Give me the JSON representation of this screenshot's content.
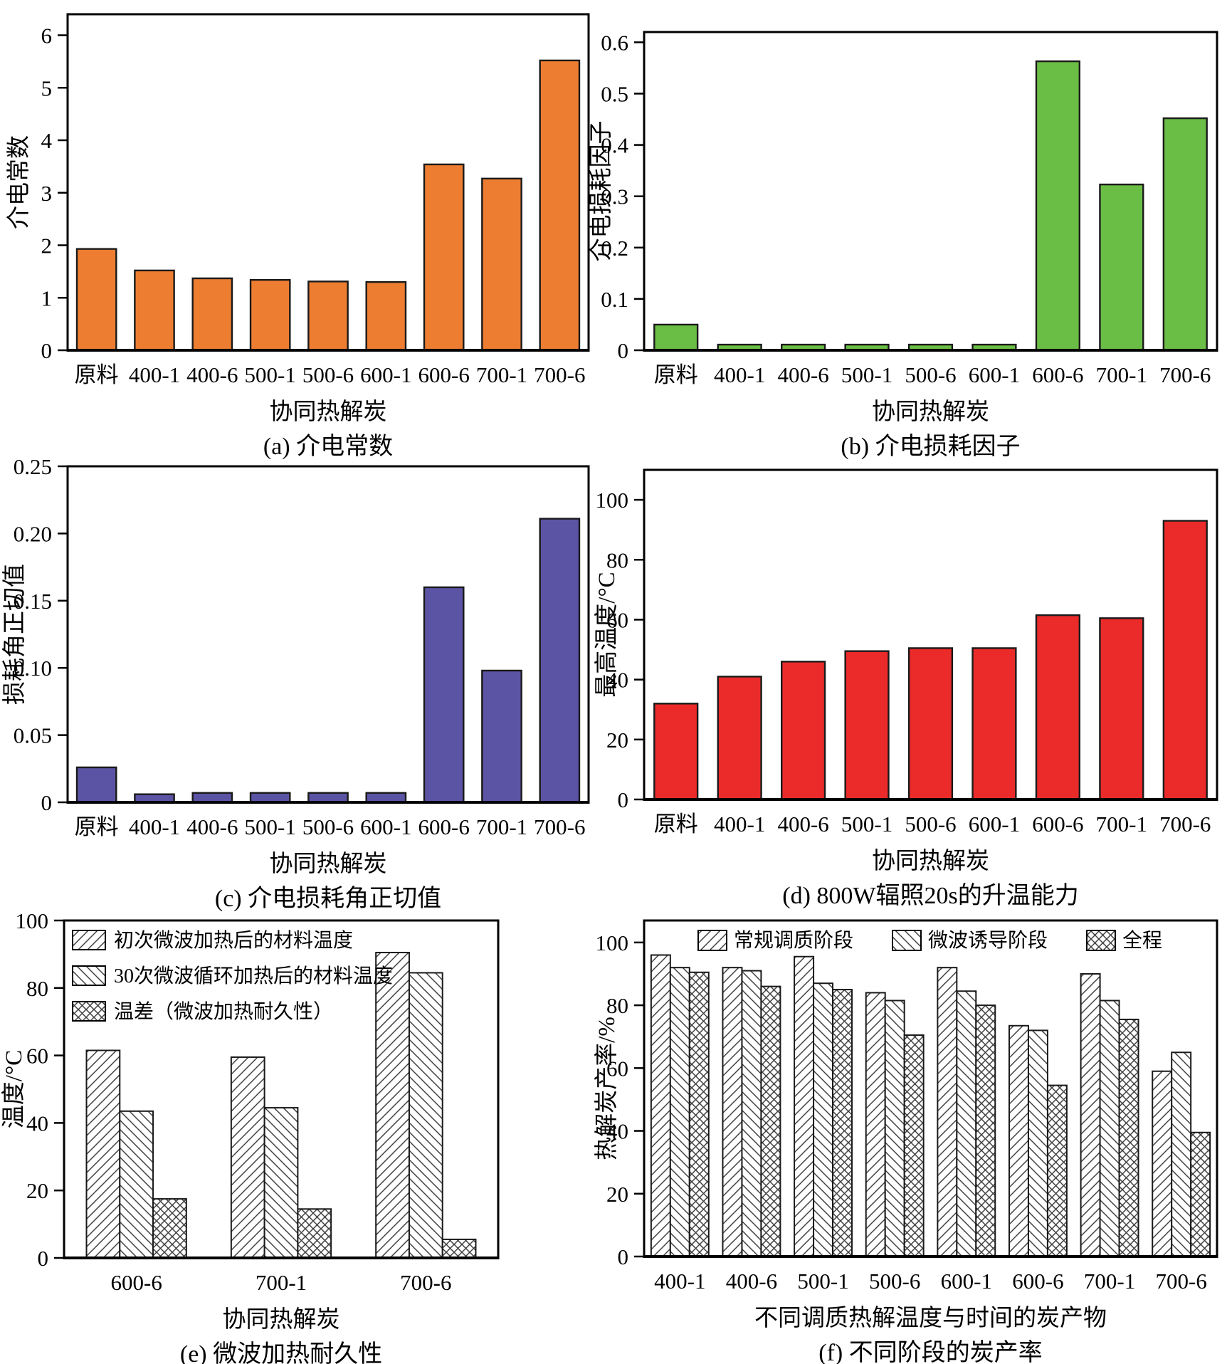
{
  "figure_title": "",
  "chart_data": [
    {
      "id": "a",
      "type": "bar",
      "caption": "(a) 介电常数",
      "xlabel": "协同热解炭",
      "ylabel": "介电常数",
      "categories": [
        "原料",
        "400-1",
        "400-6",
        "500-1",
        "500-6",
        "600-1",
        "600-6",
        "700-1",
        "700-6"
      ],
      "values": [
        1.93,
        1.52,
        1.37,
        1.34,
        1.31,
        1.3,
        3.54,
        3.27,
        5.52
      ],
      "ylim": [
        0,
        6.4
      ],
      "ytick_labels": [
        "0",
        "1",
        "2",
        "3",
        "4",
        "5",
        "6"
      ],
      "bar_color": "#ED7D31",
      "grid": false,
      "legend": null
    },
    {
      "id": "b",
      "type": "bar",
      "caption": "(b) 介电损耗因子",
      "xlabel": "协同热解炭",
      "ylabel": "介电损耗因子",
      "categories": [
        "原料",
        "400-1",
        "400-6",
        "500-1",
        "500-6",
        "600-1",
        "600-6",
        "700-1",
        "700-6"
      ],
      "values": [
        0.05,
        0.011,
        0.011,
        0.011,
        0.011,
        0.011,
        0.563,
        0.323,
        0.452
      ],
      "ylim": [
        0,
        0.62
      ],
      "ytick_labels": [
        "0",
        "0.1",
        "0.2",
        "0.3",
        "0.4",
        "0.5",
        "0.6"
      ],
      "bar_color": "#6ABD45",
      "grid": false,
      "legend": null
    },
    {
      "id": "c",
      "type": "bar",
      "caption": "(c) 介电损耗角正切值",
      "xlabel": "协同热解炭",
      "ylabel": "损耗角正切值",
      "categories": [
        "原料",
        "400-1",
        "400-6",
        "500-1",
        "500-6",
        "600-1",
        "600-6",
        "700-1",
        "700-6"
      ],
      "values": [
        0.026,
        0.006,
        0.007,
        0.007,
        0.007,
        0.007,
        0.16,
        0.098,
        0.211
      ],
      "ylim": [
        0,
        0.25
      ],
      "ytick_labels": [
        "0",
        "0.05",
        "0.10",
        "0.15",
        "0.20",
        "0.25"
      ],
      "bar_color": "#5B54A4",
      "grid": false,
      "legend": null
    },
    {
      "id": "d",
      "type": "bar",
      "caption": "(d) 800W辐照20s的升温能力",
      "xlabel": "协同热解炭",
      "ylabel": "最高温度/°C",
      "categories": [
        "原料",
        "400-1",
        "400-6",
        "500-1",
        "500-6",
        "600-1",
        "600-6",
        "700-1",
        "700-6"
      ],
      "values": [
        32,
        41,
        46,
        49.5,
        50.5,
        50.5,
        61.5,
        60.5,
        93
      ],
      "ylim": [
        0,
        110
      ],
      "ytick_labels": [
        "0",
        "20",
        "40",
        "60",
        "80",
        "100"
      ],
      "bar_color": "#EB2A2A",
      "grid": false,
      "legend": null
    },
    {
      "id": "e",
      "type": "bar",
      "caption": "(e) 微波加热耐久性",
      "xlabel": "协同热解炭",
      "ylabel": "温度/°C",
      "categories": [
        "600-6",
        "700-1",
        "700-6"
      ],
      "series": [
        {
          "name": "初次微波加热后的材料温度",
          "pattern": "diag",
          "values": [
            61.5,
            59.5,
            90.5
          ]
        },
        {
          "name": "30次微波循环加热后的材料温度",
          "pattern": "backdiag",
          "values": [
            43.5,
            44.5,
            84.5
          ]
        },
        {
          "name": "温差（微波加热耐久性）",
          "pattern": "cross",
          "values": [
            17.5,
            14.5,
            5.5
          ]
        }
      ],
      "ylim": [
        0,
        100
      ],
      "ytick_labels": [
        "0",
        "20",
        "40",
        "60",
        "80",
        "100"
      ],
      "bar_color": "#ffffff",
      "grid": false,
      "legend_position": "top-left-vertical"
    },
    {
      "id": "f",
      "type": "bar",
      "caption": "(f) 不同阶段的炭产率",
      "xlabel": "不同调质热解温度与时间的炭产物",
      "ylabel": "热解炭产率/%",
      "categories": [
        "400-1",
        "400-6",
        "500-1",
        "500-6",
        "600-1",
        "600-6",
        "700-1",
        "700-6"
      ],
      "series": [
        {
          "name": "常规调质阶段",
          "pattern": "diag",
          "values": [
            96,
            92,
            95.5,
            84,
            92,
            73.5,
            90,
            59
          ]
        },
        {
          "name": "微波诱导阶段",
          "pattern": "backdiag",
          "values": [
            92,
            91,
            87,
            81.5,
            84.5,
            72,
            81.5,
            65
          ]
        },
        {
          "name": "全程",
          "pattern": "cross",
          "values": [
            90.5,
            86,
            85,
            70.5,
            80,
            54.5,
            75.5,
            39.5
          ]
        }
      ],
      "ylim": [
        0,
        107
      ],
      "ytick_labels": [
        "0",
        "20",
        "40",
        "60",
        "80",
        "100"
      ],
      "bar_color": "#ffffff",
      "grid": false,
      "legend_position": "top-horizontal"
    }
  ],
  "style": {
    "axis_color": "#000000",
    "bar_edge_color": "#1a1a1a",
    "hatch_color": "#3f3f3f"
  }
}
